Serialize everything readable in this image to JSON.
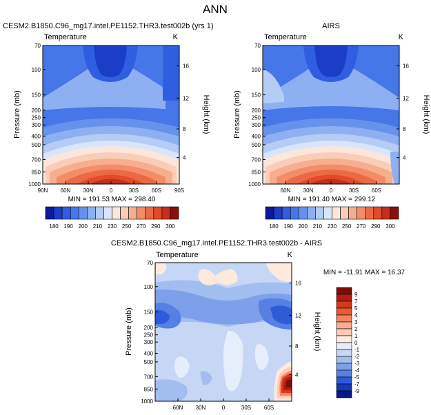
{
  "page_title": "ANN",
  "chart_data": [
    {
      "type": "contour",
      "title": "CESM2.B1850.C96_mg17.intel.PE1152.THR3.test002b (yrs 1)",
      "left_label": "Temperature",
      "right_label": "K",
      "ylabel": "Pressure (mb)",
      "y2label": "Height (km)",
      "x_ticks": [
        "90N",
        "60N",
        "30N",
        "0",
        "30S",
        "60S",
        "90S"
      ],
      "y_ticks": [
        "70",
        "100",
        "150",
        "200",
        "250",
        "300",
        "400",
        "500",
        "700",
        "850",
        "1000"
      ],
      "y2_ticks": [
        "16",
        "12",
        "8",
        "4"
      ],
      "stats": "MIN = 191.53   MAX = 298.40",
      "min": 191.53,
      "max": 298.4,
      "colorbar_labels": [
        "180",
        "190",
        "200",
        "210",
        "230",
        "250",
        "270",
        "290",
        "300"
      ]
    },
    {
      "type": "contour",
      "title": "AIRS",
      "left_label": "Temperature",
      "right_label": "K",
      "ylabel": "Pressure (mb)",
      "y2label": "Height (km)",
      "x_ticks": [
        "60N",
        "30N",
        "0",
        "30S",
        "60S"
      ],
      "y_ticks": [
        "70",
        "100",
        "150",
        "200",
        "250",
        "300",
        "400",
        "500",
        "700",
        "850",
        "1000"
      ],
      "y2_ticks": [
        "16",
        "12",
        "8",
        "4"
      ],
      "stats": "MIN = 191.40   MAX = 299.12",
      "min": 191.4,
      "max": 299.12,
      "colorbar_labels": [
        "180",
        "190",
        "200",
        "210",
        "230",
        "250",
        "270",
        "290",
        "300"
      ]
    },
    {
      "type": "contour",
      "title": "CESM2.B1850.C96_mg17.intel.PE1152.THR3.test002b - AIRS",
      "left_label": "Temperature",
      "right_label": "K",
      "ylabel": "Pressure (mb)",
      "y2label": "Height (km)",
      "x_ticks": [
        "60N",
        "30N",
        "0",
        "30S",
        "60S"
      ],
      "y_ticks": [
        "70",
        "100",
        "150",
        "200",
        "250",
        "300",
        "400",
        "500",
        "700",
        "850",
        "1000"
      ],
      "y2_ticks": [
        "16",
        "12",
        "8",
        "4"
      ],
      "stats": "MIN = -11.91   MAX =  16.37",
      "min": -11.91,
      "max": 16.37,
      "colorbar_labels": [
        "9",
        "7",
        "5",
        "4",
        "3",
        "2",
        "1",
        "0",
        "-1",
        "-2",
        "-3",
        "-4",
        "-5",
        "-7",
        "-9"
      ]
    }
  ],
  "colors": {
    "abs_scale": [
      "#0a1a9a",
      "#1a3ec8",
      "#2f5ee0",
      "#4677e8",
      "#6792ec",
      "#8eb0f2",
      "#b4ccf6",
      "#d8e5fa",
      "#fbe6dc",
      "#f9cdb7",
      "#f6ae8f",
      "#f28d67",
      "#ec6a43",
      "#e24a2a",
      "#c52e1b",
      "#8c0f0a"
    ],
    "diff_scale": [
      "#7d0c08",
      "#b01d12",
      "#d63a1e",
      "#ec5a33",
      "#f58460",
      "#f9ab8d",
      "#fbcdb7",
      "#fde9de",
      "#e6eefb",
      "#c6d7f6",
      "#a2bdf0",
      "#7ea0ea",
      "#5680e3",
      "#2e5cd8",
      "#1638b6",
      "#0a1887"
    ]
  }
}
